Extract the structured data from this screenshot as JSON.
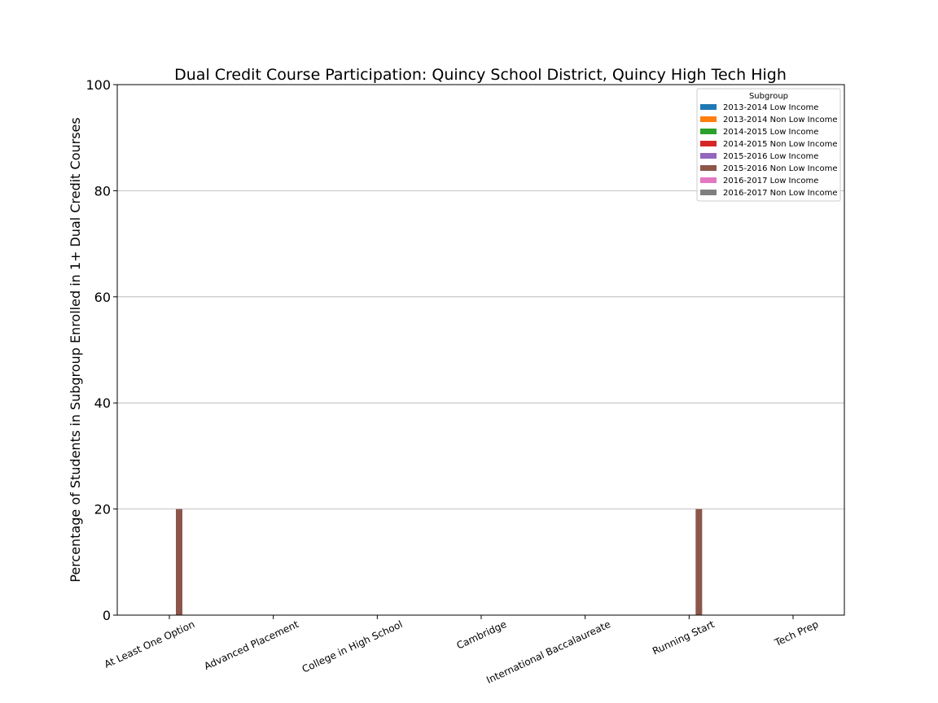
{
  "chart_data": {
    "type": "bar",
    "title": "Dual Credit Course Participation: Quincy School District, Quincy High Tech High",
    "xlabel": "",
    "ylabel": "Percentage of Students in Subgroup Enrolled in 1+ Dual Credit Courses",
    "ylim": [
      0,
      100
    ],
    "yticks": [
      0,
      20,
      40,
      60,
      80,
      100
    ],
    "grid": "horizontal",
    "legend_title": "Subgroup",
    "legend_position": "top-right",
    "categories": [
      "At Least One Option",
      "Advanced Placement",
      "College in High School",
      "Cambridge",
      "International Baccalaureate",
      "Running Start",
      "Tech Prep"
    ],
    "series": [
      {
        "name": "2013-2014 Low Income",
        "color": "#1f77b4",
        "values": [
          0,
          0,
          0,
          0,
          0,
          0,
          0
        ]
      },
      {
        "name": "2013-2014 Non Low Income",
        "color": "#ff7f0e",
        "values": [
          0,
          0,
          0,
          0,
          0,
          0,
          0
        ]
      },
      {
        "name": "2014-2015 Low Income",
        "color": "#2ca02c",
        "values": [
          0,
          0,
          0,
          0,
          0,
          0,
          0
        ]
      },
      {
        "name": "2014-2015 Non Low Income",
        "color": "#d62728",
        "values": [
          0,
          0,
          0,
          0,
          0,
          0,
          0
        ]
      },
      {
        "name": "2015-2016 Low Income",
        "color": "#9467bd",
        "values": [
          0,
          0,
          0,
          0,
          0,
          0,
          0
        ]
      },
      {
        "name": "2015-2016 Non Low Income",
        "color": "#8c564b",
        "values": [
          20,
          0,
          0,
          0,
          0,
          20,
          0
        ]
      },
      {
        "name": "2016-2017 Low Income",
        "color": "#e377c2",
        "values": [
          0,
          0,
          0,
          0,
          0,
          0,
          0
        ]
      },
      {
        "name": "2016-2017 Non Low Income",
        "color": "#7f7f7f",
        "values": [
          0,
          0,
          0,
          0,
          0,
          0,
          0
        ]
      }
    ]
  }
}
